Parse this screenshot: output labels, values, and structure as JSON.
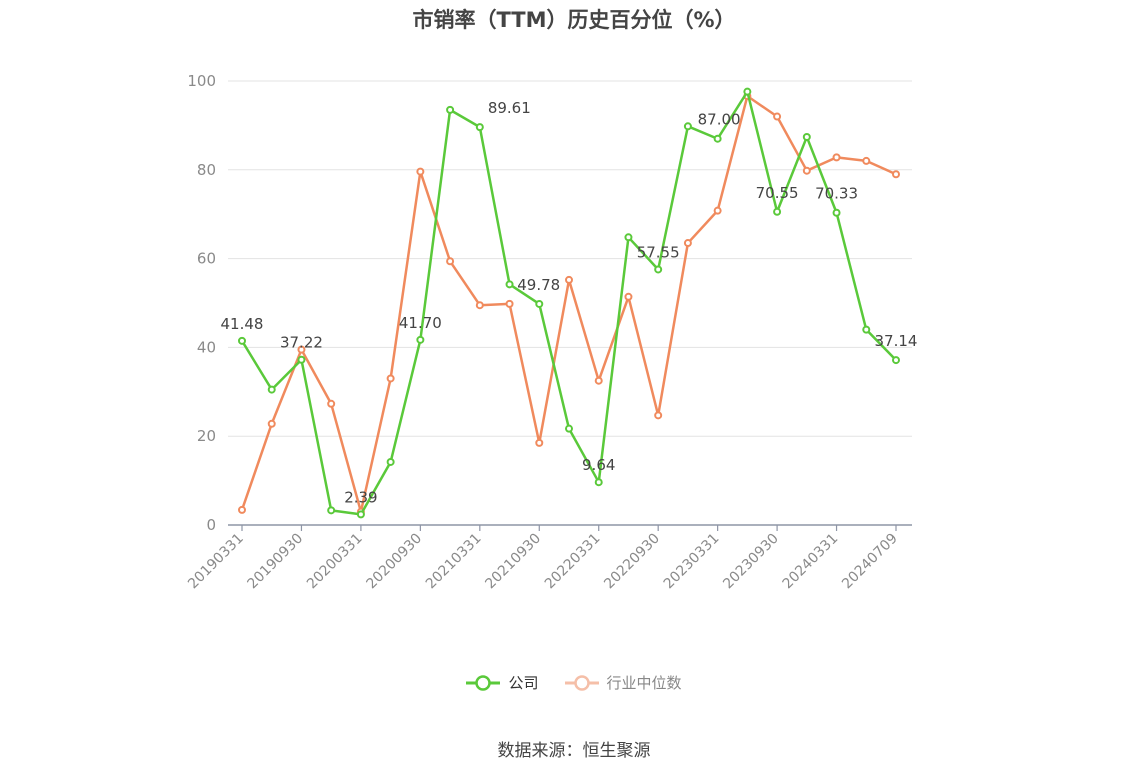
{
  "chart_data": {
    "type": "line",
    "title": "市销率（TTM）历史百分位（%）",
    "ylim": [
      0,
      100
    ],
    "yticks": [
      0,
      20,
      40,
      60,
      80,
      100
    ],
    "x": [
      "20190331",
      "20190630",
      "20190930",
      "20191231",
      "20200331",
      "20200630",
      "20200930",
      "20201231",
      "20210331",
      "20210630",
      "20210930",
      "20211231",
      "20220331",
      "20220630",
      "20220930",
      "20221231",
      "20230331",
      "20230630",
      "20230930",
      "20231231",
      "20240331",
      "20240630",
      "20240709"
    ],
    "x_tick_labels": [
      "20190331",
      "20190930",
      "20200331",
      "20200930",
      "20210331",
      "20210930",
      "20220331",
      "20220930",
      "20230331",
      "20230930",
      "20240331",
      "20240709"
    ],
    "series": [
      {
        "name": "公司",
        "color": "#5ac93a",
        "values": [
          41.48,
          30.5,
          37.22,
          3.3,
          2.39,
          14.2,
          41.7,
          93.5,
          89.61,
          54.2,
          49.78,
          21.7,
          9.64,
          64.8,
          57.55,
          89.8,
          87.0,
          97.6,
          70.55,
          87.4,
          70.33,
          44.0,
          37.14
        ]
      },
      {
        "name": "行业中位数",
        "color": "#f08a5d",
        "values": [
          3.4,
          22.8,
          39.5,
          27.3,
          3.0,
          33.0,
          79.6,
          59.4,
          49.5,
          49.8,
          18.5,
          55.2,
          32.5,
          51.4,
          24.7,
          63.5,
          70.8,
          96.6,
          92.0,
          79.8,
          82.8,
          82.0,
          79.0
        ]
      }
    ],
    "data_labels": [
      {
        "series": 0,
        "index": 0,
        "text": "41.48"
      },
      {
        "series": 0,
        "index": 2,
        "text": "37.22"
      },
      {
        "series": 0,
        "index": 4,
        "text": "2.39"
      },
      {
        "series": 0,
        "index": 6,
        "text": "41.70"
      },
      {
        "series": 0,
        "index": 8,
        "text": "89.61"
      },
      {
        "series": 0,
        "index": 10,
        "text": "49.78"
      },
      {
        "series": 0,
        "index": 12,
        "text": "9.64"
      },
      {
        "series": 0,
        "index": 14,
        "text": "57.55"
      },
      {
        "series": 0,
        "index": 16,
        "text": "87.00"
      },
      {
        "series": 0,
        "index": 18,
        "text": "70.55"
      },
      {
        "series": 0,
        "index": 20,
        "text": "70.33"
      },
      {
        "series": 0,
        "index": 22,
        "text": "37.14"
      }
    ],
    "grid": true,
    "legend_position": "bottom"
  },
  "source": "数据来源：恒生聚源"
}
